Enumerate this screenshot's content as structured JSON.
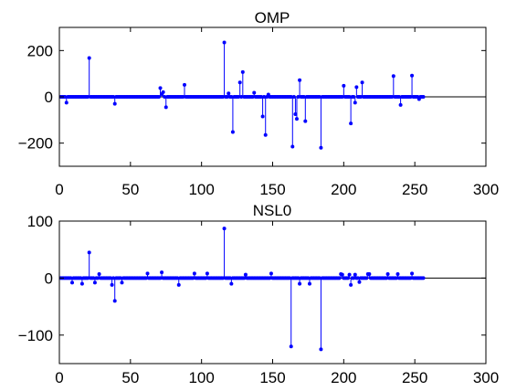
{
  "chart_data": [
    {
      "type": "stem",
      "title": "OMP",
      "xlim": [
        0,
        300
      ],
      "ylim": [
        -300,
        300
      ],
      "xticks": [
        0,
        50,
        100,
        150,
        200,
        250,
        300
      ],
      "yticks": [
        -200,
        0,
        200
      ],
      "ytick_labels": [
        "−200",
        "0",
        "200"
      ],
      "grid": false,
      "color": "#0000ff",
      "n_points": 256,
      "nonzero_points": [
        {
          "x": 5,
          "y": -25
        },
        {
          "x": 21,
          "y": 168
        },
        {
          "x": 39,
          "y": -30
        },
        {
          "x": 71,
          "y": 38
        },
        {
          "x": 72,
          "y": 12
        },
        {
          "x": 73,
          "y": 20
        },
        {
          "x": 75,
          "y": -45
        },
        {
          "x": 88,
          "y": 52
        },
        {
          "x": 116,
          "y": 235
        },
        {
          "x": 119,
          "y": 15
        },
        {
          "x": 122,
          "y": -152
        },
        {
          "x": 127,
          "y": 62
        },
        {
          "x": 129,
          "y": 107
        },
        {
          "x": 137,
          "y": 18
        },
        {
          "x": 143,
          "y": -85
        },
        {
          "x": 145,
          "y": -165
        },
        {
          "x": 147,
          "y": 10
        },
        {
          "x": 164,
          "y": -215
        },
        {
          "x": 166,
          "y": -75
        },
        {
          "x": 167,
          "y": -95
        },
        {
          "x": 169,
          "y": 72
        },
        {
          "x": 173,
          "y": -105
        },
        {
          "x": 184,
          "y": -220
        },
        {
          "x": 200,
          "y": 48
        },
        {
          "x": 205,
          "y": -115
        },
        {
          "x": 208,
          "y": -25
        },
        {
          "x": 209,
          "y": 42
        },
        {
          "x": 213,
          "y": 62
        },
        {
          "x": 235,
          "y": 90
        },
        {
          "x": 240,
          "y": -35
        },
        {
          "x": 248,
          "y": 92
        },
        {
          "x": 253,
          "y": -10
        }
      ]
    },
    {
      "type": "stem",
      "title": "NSL0",
      "xlim": [
        0,
        300
      ],
      "ylim": [
        -150,
        100
      ],
      "xticks": [
        0,
        50,
        100,
        150,
        200,
        250,
        300
      ],
      "yticks": [
        -100,
        0,
        100
      ],
      "ytick_labels": [
        "−100",
        "0",
        "100"
      ],
      "grid": false,
      "color": "#0000ff",
      "n_points": 256,
      "nonzero_points": [
        {
          "x": 9,
          "y": -8
        },
        {
          "x": 16,
          "y": -10
        },
        {
          "x": 21,
          "y": 45
        },
        {
          "x": 25,
          "y": -8
        },
        {
          "x": 28,
          "y": 7
        },
        {
          "x": 37,
          "y": -12
        },
        {
          "x": 39,
          "y": -40
        },
        {
          "x": 44,
          "y": -8
        },
        {
          "x": 62,
          "y": 8
        },
        {
          "x": 72,
          "y": 10
        },
        {
          "x": 84,
          "y": -12
        },
        {
          "x": 95,
          "y": 8
        },
        {
          "x": 104,
          "y": 8
        },
        {
          "x": 116,
          "y": 87
        },
        {
          "x": 121,
          "y": -10
        },
        {
          "x": 131,
          "y": 6
        },
        {
          "x": 149,
          "y": 8
        },
        {
          "x": 163,
          "y": -120
        },
        {
          "x": 169,
          "y": -10
        },
        {
          "x": 176,
          "y": -10
        },
        {
          "x": 184,
          "y": -125
        },
        {
          "x": 198,
          "y": 7
        },
        {
          "x": 199,
          "y": 6
        },
        {
          "x": 204,
          "y": 6
        },
        {
          "x": 205,
          "y": -12
        },
        {
          "x": 208,
          "y": 6
        },
        {
          "x": 211,
          "y": -7
        },
        {
          "x": 217,
          "y": 7
        },
        {
          "x": 218,
          "y": 7
        },
        {
          "x": 231,
          "y": 7
        },
        {
          "x": 238,
          "y": 7
        },
        {
          "x": 248,
          "y": 8
        }
      ]
    }
  ]
}
